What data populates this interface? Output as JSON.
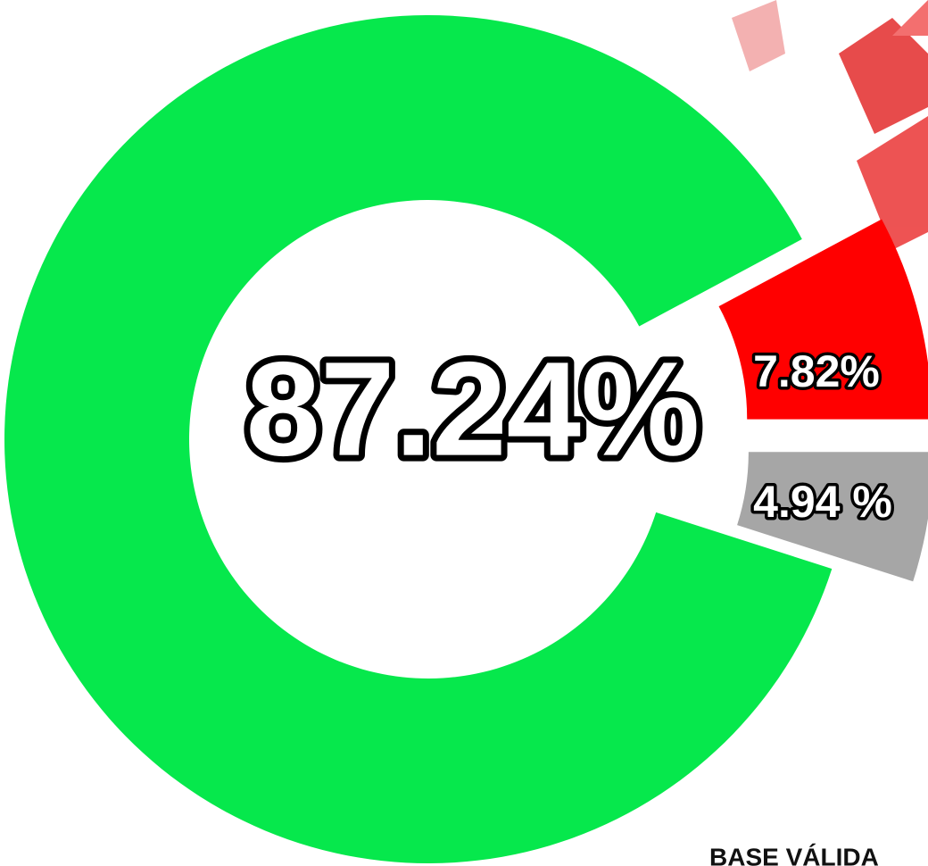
{
  "chart_data": {
    "type": "donut",
    "categories": [
      null,
      null,
      null
    ],
    "values": [
      87.24,
      7.82,
      4.94
    ],
    "value_labels": [
      "87.24%",
      "7.82%",
      "4.94 %"
    ],
    "colors": [
      "#06e84c",
      "#ff0000",
      "#a6a6a6"
    ],
    "exploded": [
      false,
      true,
      true
    ],
    "annotation": "BASE VÁLIDA"
  }
}
